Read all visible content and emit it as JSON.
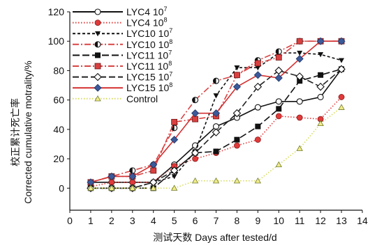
{
  "chart_data": {
    "type": "line",
    "xlabel": "测试天数 Days after tested/d",
    "ylabel": [
      "校正累计死亡率",
      "Corrected cumulative motrality/%"
    ],
    "xlim": [
      0,
      14
    ],
    "ylim": [
      -15,
      120
    ],
    "xticks": [
      0,
      1,
      2,
      3,
      4,
      5,
      6,
      7,
      8,
      9,
      10,
      11,
      12,
      13,
      14
    ],
    "yticks": [
      0,
      20,
      40,
      60,
      80,
      100,
      120
    ],
    "grid": false,
    "legend_position": "top-left",
    "x": [
      1,
      2,
      3,
      4,
      5,
      6,
      7,
      8,
      9,
      10,
      11,
      12,
      13
    ],
    "series": [
      {
        "name": "LYC4",
        "sup": "7",
        "color": "#111111",
        "dash": "",
        "width": 1.6,
        "marker": "circle-open",
        "values": [
          4,
          4,
          4,
          4,
          16,
          29,
          42,
          48,
          55,
          59,
          59,
          62,
          81
        ]
      },
      {
        "name": "LYC4",
        "sup": "8",
        "color": "#e23b3b",
        "dash": "1.5,2.5",
        "width": 1.6,
        "marker": "circle-red",
        "values": [
          1,
          4,
          4,
          4,
          15,
          20,
          24,
          29,
          33,
          49,
          48,
          47,
          62
        ]
      },
      {
        "name": "LYC10",
        "sup": "7",
        "color": "#111111",
        "dash": "4,3",
        "width": 1.6,
        "marker": "triangle-down",
        "values": [
          0,
          0,
          0,
          4,
          8,
          25,
          63,
          82,
          82,
          92,
          92,
          91,
          87
        ]
      },
      {
        "name": "LYC10",
        "sup": "8",
        "color": "#d84444",
        "dash": "9,3,2,3",
        "width": 1.6,
        "marker": "circle-half",
        "values": [
          4,
          8,
          12,
          16,
          41,
          60,
          73,
          77,
          87,
          93,
          100,
          100,
          100
        ]
      },
      {
        "name": "LYC11",
        "sup": "7",
        "color": "#111111",
        "dash": "10,4",
        "width": 1.6,
        "marker": "square-black",
        "values": [
          0,
          0,
          0,
          0,
          12,
          24,
          25,
          33,
          42,
          54,
          73,
          77,
          81
        ]
      },
      {
        "name": "LYC11",
        "sup": "8",
        "color": "#d84444",
        "dash": "9,3,2,3",
        "width": 1.6,
        "marker": "square-red",
        "values": [
          4,
          8,
          8,
          12,
          45,
          47,
          49,
          77,
          85,
          89,
          100,
          100,
          100
        ]
      },
      {
        "name": "LYC15",
        "sup": "7",
        "color": "#222222",
        "dash": "9,4",
        "width": 1.6,
        "marker": "diamond-open",
        "values": [
          0,
          0,
          0,
          4,
          12,
          24,
          38,
          51,
          69,
          80,
          76,
          69,
          81
        ]
      },
      {
        "name": "LYC15",
        "sup": "8",
        "color": "#d32f2f",
        "dash": "",
        "width": 1.6,
        "marker": "diamond-blue",
        "values": [
          4,
          8,
          8,
          16,
          33,
          51,
          51,
          69,
          77,
          75,
          88,
          100,
          100
        ]
      },
      {
        "name": "Control",
        "sup": "",
        "color": "#d8dc5a",
        "dash": "1.5,2.5",
        "width": 1.6,
        "marker": "triangle-up-yellow",
        "values": [
          0,
          0,
          0,
          0,
          0,
          5,
          5,
          5,
          5,
          16,
          27,
          44,
          55
        ]
      }
    ]
  }
}
